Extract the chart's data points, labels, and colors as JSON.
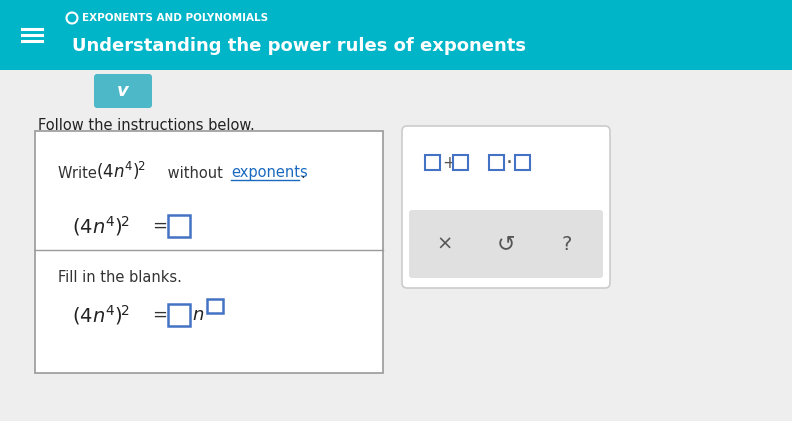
{
  "bg_color": "#ffffff",
  "header_bg": "#00b5c8",
  "header_title_small": "EXPONENTS AND POLYNOMIALS",
  "header_title_main": "Understanding the power rules of exponents",
  "header_small_color": "#ffffff",
  "header_main_color": "#ffffff",
  "body_bg": "#eeeeee",
  "chevron_bg": "#4db8c8",
  "chevron_color": "#ffffff",
  "follow_text": "Follow the instructions below.",
  "follow_color": "#222222",
  "box_bg": "#ffffff",
  "exponents_color": "#1a6abf",
  "input_border": "#4472c4",
  "right_box_bg": "#ffffff",
  "bottom_panel_bg": "#e0e0e0",
  "text_color": "#333333",
  "math_color": "#222222",
  "ops_color": "#555555",
  "fill_text": "Fill in the blanks."
}
